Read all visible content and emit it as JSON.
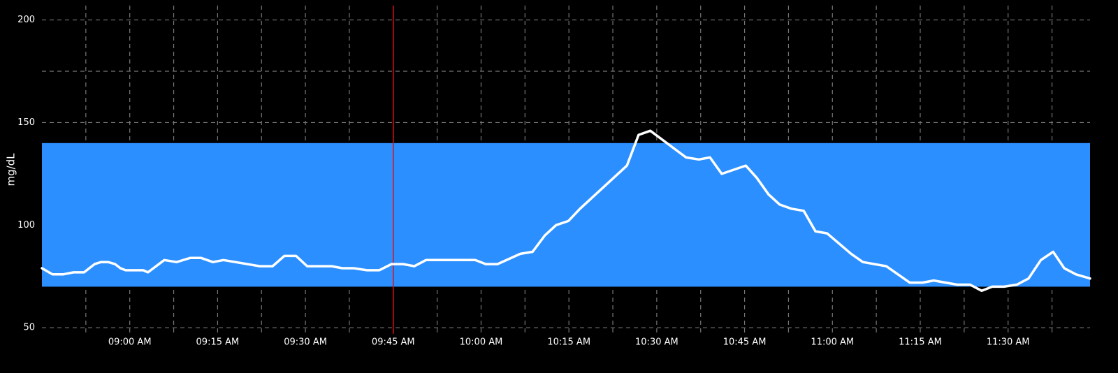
{
  "chart_data": {
    "type": "line",
    "y_label": "mg/dL",
    "x": [
      525,
      526.8,
      528.6,
      530.4,
      532.2,
      534.0,
      535.1,
      536.3,
      537.5,
      538.4,
      539.3,
      542.3,
      543.1,
      545.9,
      548.0,
      550.3,
      552.2,
      554.2,
      556.0,
      562.2,
      564.4,
      566.4,
      568.4,
      570.3,
      574.5,
      576.3,
      578.3,
      580.5,
      582.6,
      584.7,
      586.7,
      588.6,
      590.6,
      599.0,
      600.8,
      602.8,
      606.7,
      608.8,
      610.9,
      612.8,
      614.9,
      616.9,
      624.9,
      626.9,
      628.9,
      635.0,
      637.2,
      639.1,
      641.1,
      645.2,
      647.1,
      649.1,
      651.0,
      653.0,
      655.1,
      657.1,
      659.1,
      663.2,
      665.2,
      669.2,
      673.2,
      675.4,
      677.3,
      681.3,
      683.5,
      685.5,
      687.3,
      689.3,
      691.5,
      693.5,
      695.6,
      697.7,
      699.6,
      701.6,
      704
    ],
    "values": [
      79,
      76,
      76,
      77,
      77,
      81,
      82,
      82,
      81,
      79,
      78,
      78,
      77,
      83,
      82,
      84,
      84,
      82,
      83,
      80,
      80,
      85,
      85,
      80,
      80,
      79,
      79,
      78,
      78,
      81,
      81,
      80,
      83,
      83,
      81,
      81,
      86,
      87,
      95,
      100,
      102,
      108,
      129,
      144,
      146,
      133,
      132,
      133,
      125,
      129,
      123,
      115,
      110,
      108,
      107,
      97,
      96,
      86,
      82,
      80,
      72,
      72,
      73,
      71,
      71,
      68,
      70,
      70,
      71,
      74,
      83,
      87,
      79,
      76,
      74
    ],
    "color": "#ffffff",
    "xlim": [
      525,
      704
    ],
    "xticks": [
      {
        "value": 540,
        "label": "09:00 AM"
      },
      {
        "value": 555,
        "label": "09:15 AM"
      },
      {
        "value": 570,
        "label": "09:30 AM"
      },
      {
        "value": 585,
        "label": "09:45 AM"
      },
      {
        "value": 600,
        "label": "10:00 AM"
      },
      {
        "value": 615,
        "label": "10:15 AM"
      },
      {
        "value": 630,
        "label": "10:30 AM"
      },
      {
        "value": 645,
        "label": "10:45 AM"
      },
      {
        "value": 660,
        "label": "11:00 AM"
      },
      {
        "value": 675,
        "label": "11:15 AM"
      },
      {
        "value": 690,
        "label": "11:30 AM"
      }
    ],
    "minor_xticks": [
      532.5,
      547.5,
      562.5,
      577.5,
      592.5,
      607.5,
      622.5,
      637.5,
      652.5,
      667.5,
      682.5,
      697.5
    ],
    "ylim": [
      47,
      207
    ],
    "yticks": [
      50,
      100,
      150,
      200
    ],
    "minor_yticks": [
      75,
      125,
      175
    ],
    "grid": true,
    "target_range": [
      70,
      140
    ],
    "target_color": "#2b8fff",
    "marker_x": 585,
    "marker_color": "#e01010"
  }
}
